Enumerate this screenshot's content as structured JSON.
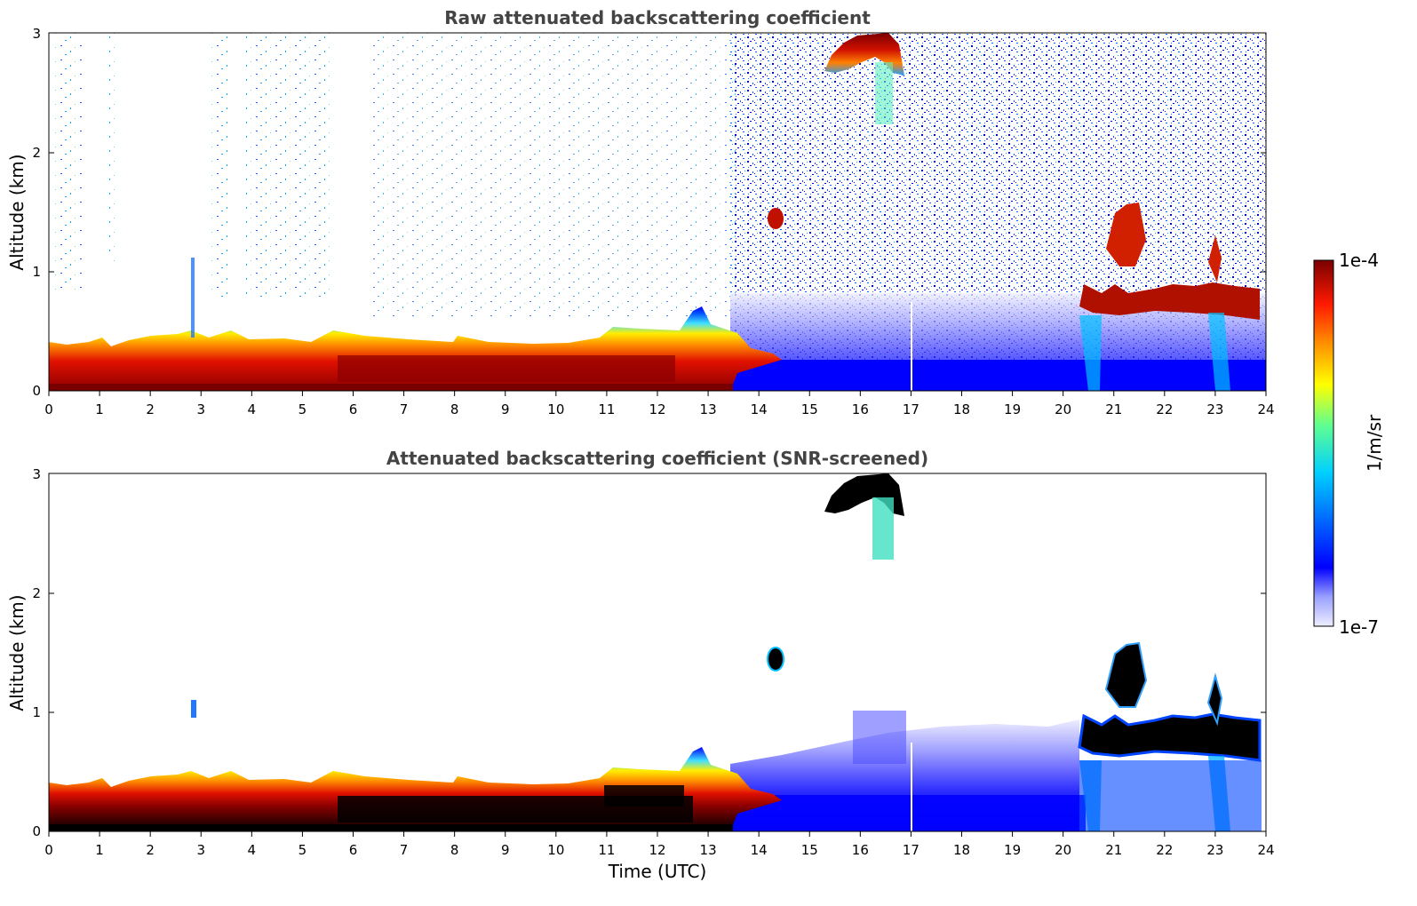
{
  "chart_data": [
    {
      "type": "heatmap",
      "title": "Raw attenuated backscattering coefficient",
      "xlabel": "",
      "ylabel": "Altitude (km)",
      "xlim": [
        0,
        24
      ],
      "ylim": [
        0,
        3
      ],
      "x_ticks": [
        "0",
        "1",
        "2",
        "3",
        "4",
        "5",
        "6",
        "7",
        "8",
        "9",
        "10",
        "11",
        "12",
        "13",
        "14",
        "15",
        "16",
        "17",
        "18",
        "19",
        "20",
        "21",
        "22",
        "23",
        "24"
      ],
      "y_ticks": [
        "0",
        "1",
        "2",
        "3"
      ],
      "features": [
        {
          "name": "boundary-layer",
          "x": [
            0,
            13.5
          ],
          "y_top": 0.45,
          "intensity": "high"
        },
        {
          "name": "noise-field",
          "x": [
            13.5,
            24
          ],
          "y": [
            0,
            3
          ],
          "intensity": "low"
        },
        {
          "name": "cloud-1",
          "x": [
            15.2,
            16.8
          ],
          "y": [
            2.6,
            3.0
          ],
          "intensity": "high"
        },
        {
          "name": "cloud-2",
          "x": [
            14.2,
            14.5
          ],
          "y": [
            1.35,
            1.55
          ],
          "intensity": "high"
        },
        {
          "name": "cloud-3",
          "x": [
            20.4,
            23.7
          ],
          "y": [
            0.55,
            1.0
          ],
          "intensity": "high"
        }
      ]
    },
    {
      "type": "heatmap",
      "title": "Attenuated backscattering coefficient (SNR-screened)",
      "xlabel": "Time (UTC)",
      "ylabel": "Altitude (km)",
      "xlim": [
        0,
        24
      ],
      "ylim": [
        0,
        3
      ],
      "x_ticks": [
        "0",
        "1",
        "2",
        "3",
        "4",
        "5",
        "6",
        "7",
        "8",
        "9",
        "10",
        "11",
        "12",
        "13",
        "14",
        "15",
        "16",
        "17",
        "18",
        "19",
        "20",
        "21",
        "22",
        "23",
        "24"
      ],
      "y_ticks": [
        "0",
        "1",
        "2",
        "3"
      ],
      "features": [
        {
          "name": "boundary-layer",
          "x": [
            0,
            13.5
          ],
          "y_top": 0.45,
          "intensity": "high"
        },
        {
          "name": "screened-low-signal",
          "x": [
            13.5,
            20.3
          ],
          "y": [
            0,
            0.9
          ],
          "intensity": "low"
        },
        {
          "name": "cloud-1",
          "x": [
            15.2,
            16.8
          ],
          "y": [
            2.6,
            3.0
          ],
          "intensity": "saturated"
        },
        {
          "name": "cloud-2",
          "x": [
            14.2,
            14.5
          ],
          "y": [
            1.35,
            1.55
          ],
          "intensity": "saturated"
        },
        {
          "name": "cloud-3",
          "x": [
            20.4,
            23.7
          ],
          "y": [
            0.55,
            1.0
          ],
          "intensity": "saturated"
        }
      ]
    }
  ],
  "colorbar": {
    "label": "1/m/sr",
    "max_label": "1e-4",
    "min_label": "1e-7",
    "colors": [
      "#e8e8ff",
      "#a0a0ff",
      "#0000ff",
      "#0066ff",
      "#00ccff",
      "#66ff99",
      "#ffff00",
      "#ff9900",
      "#ff2200",
      "#990000",
      "#7a0000"
    ]
  }
}
